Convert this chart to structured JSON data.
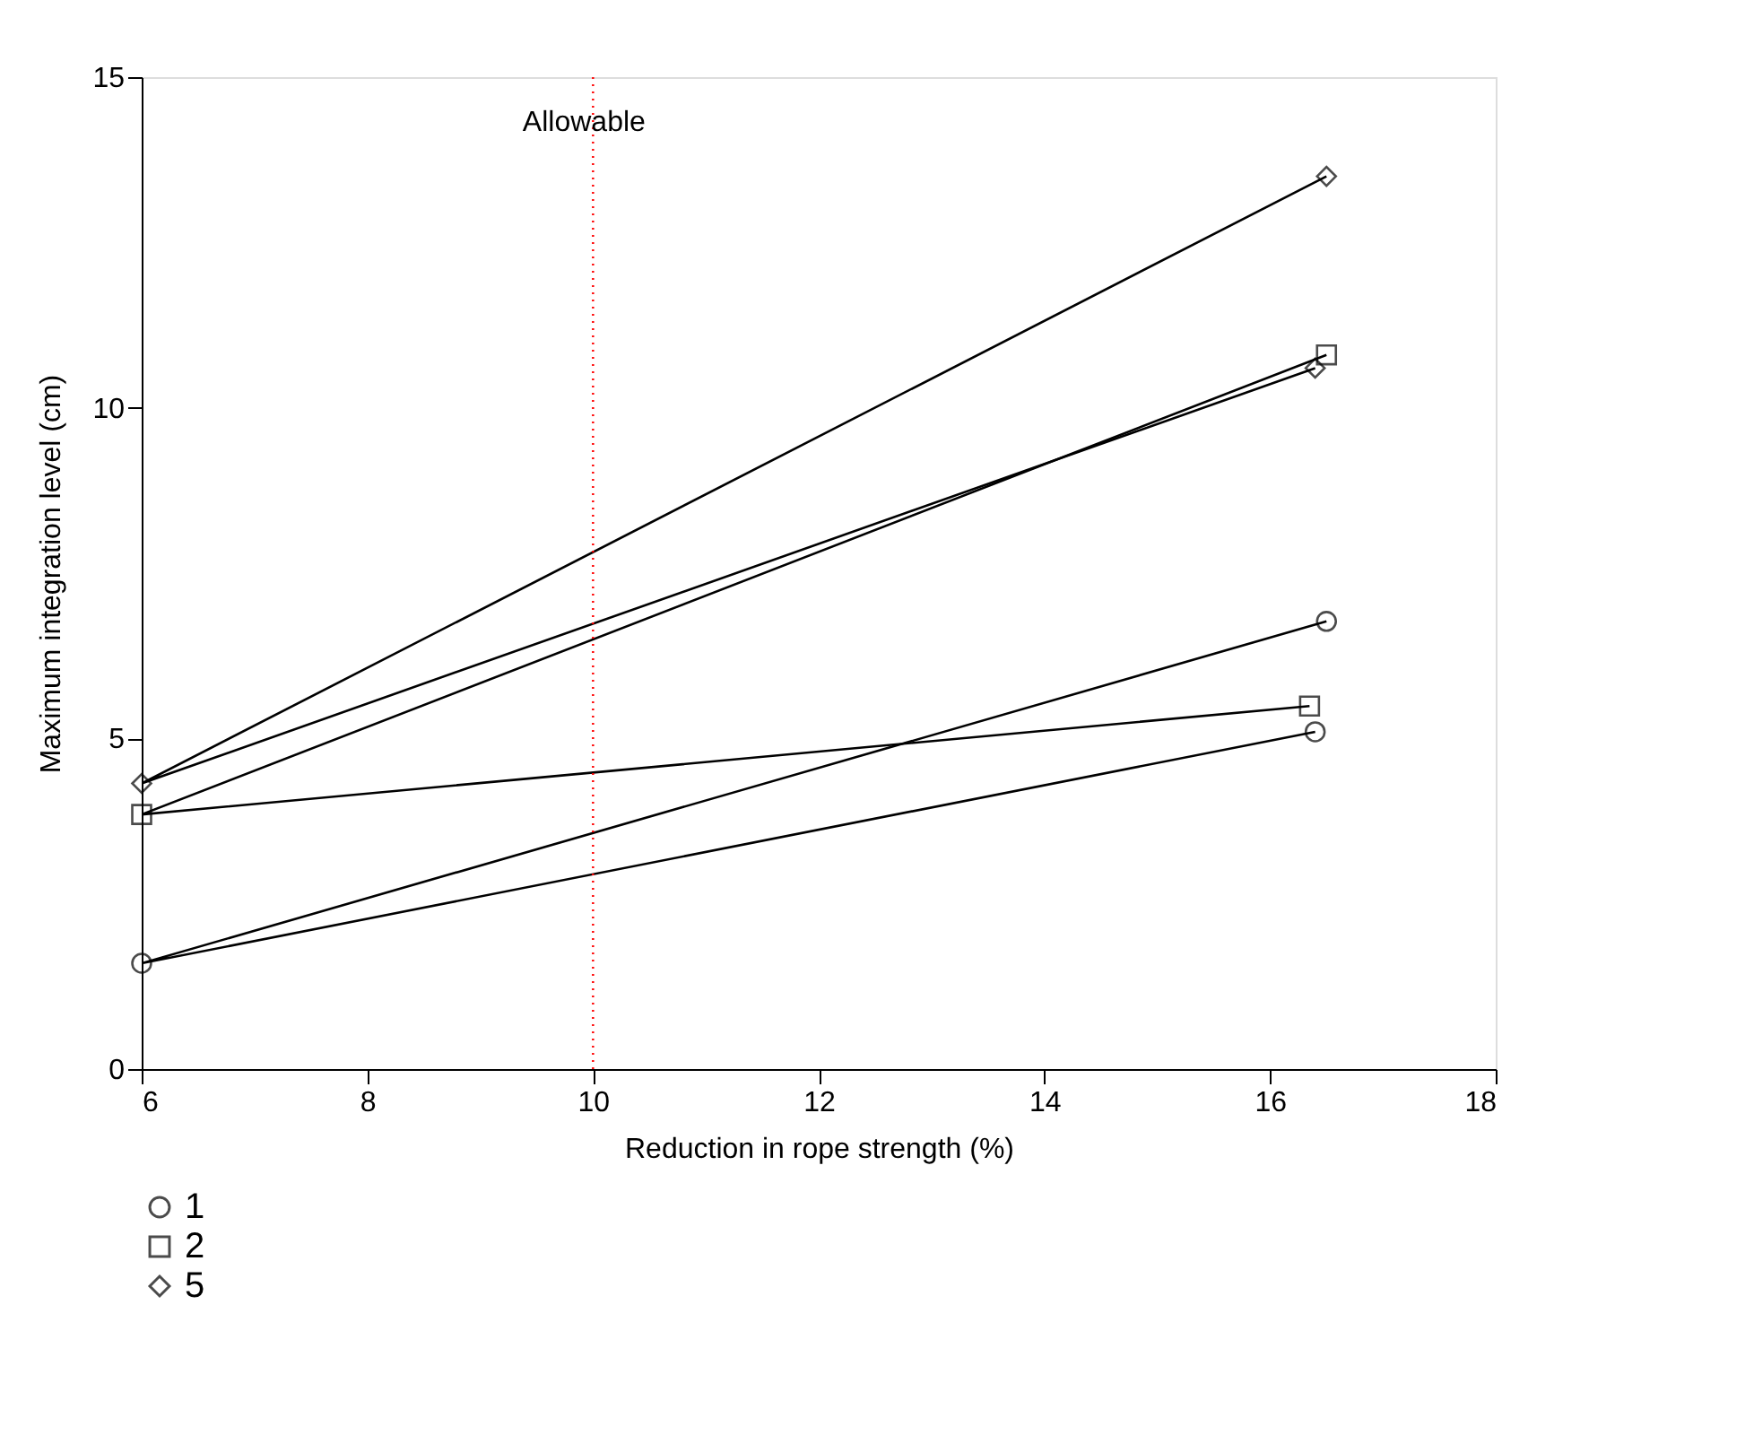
{
  "chart_data": {
    "type": "line",
    "xlabel": "Reduction in rope strength (%)",
    "ylabel": "Maximum integration level (cm)",
    "xlim": [
      6,
      18
    ],
    "xticks": [
      6,
      8,
      10,
      12,
      14,
      16,
      18
    ],
    "ylim": [
      0,
      15
    ],
    "yticks": [
      0,
      5,
      10,
      15
    ],
    "grid": false,
    "legend": "bottom left",
    "line_style": "solid",
    "series": [
      {
        "name": "1",
        "color": "#000000",
        "marker": "circle",
        "x": [
          16.4,
          6,
          16.5
        ],
        "values": [
          5.1,
          1.6,
          6.77
        ]
      },
      {
        "name": "2",
        "color": "#000000",
        "marker": "square",
        "x": [
          16.35,
          6,
          16.5
        ],
        "values": [
          5.49,
          3.85,
          10.8
        ]
      },
      {
        "name": "5",
        "color": "#000000",
        "marker": "diamond",
        "x": [
          16.4,
          6,
          16.5
        ],
        "values": [
          10.6,
          4.32,
          13.5
        ]
      }
    ],
    "ref_lines": [
      {
        "axis": "x",
        "value": 10,
        "label": "Allowable",
        "color": "#ff0000",
        "line_style": "dotted"
      }
    ]
  }
}
